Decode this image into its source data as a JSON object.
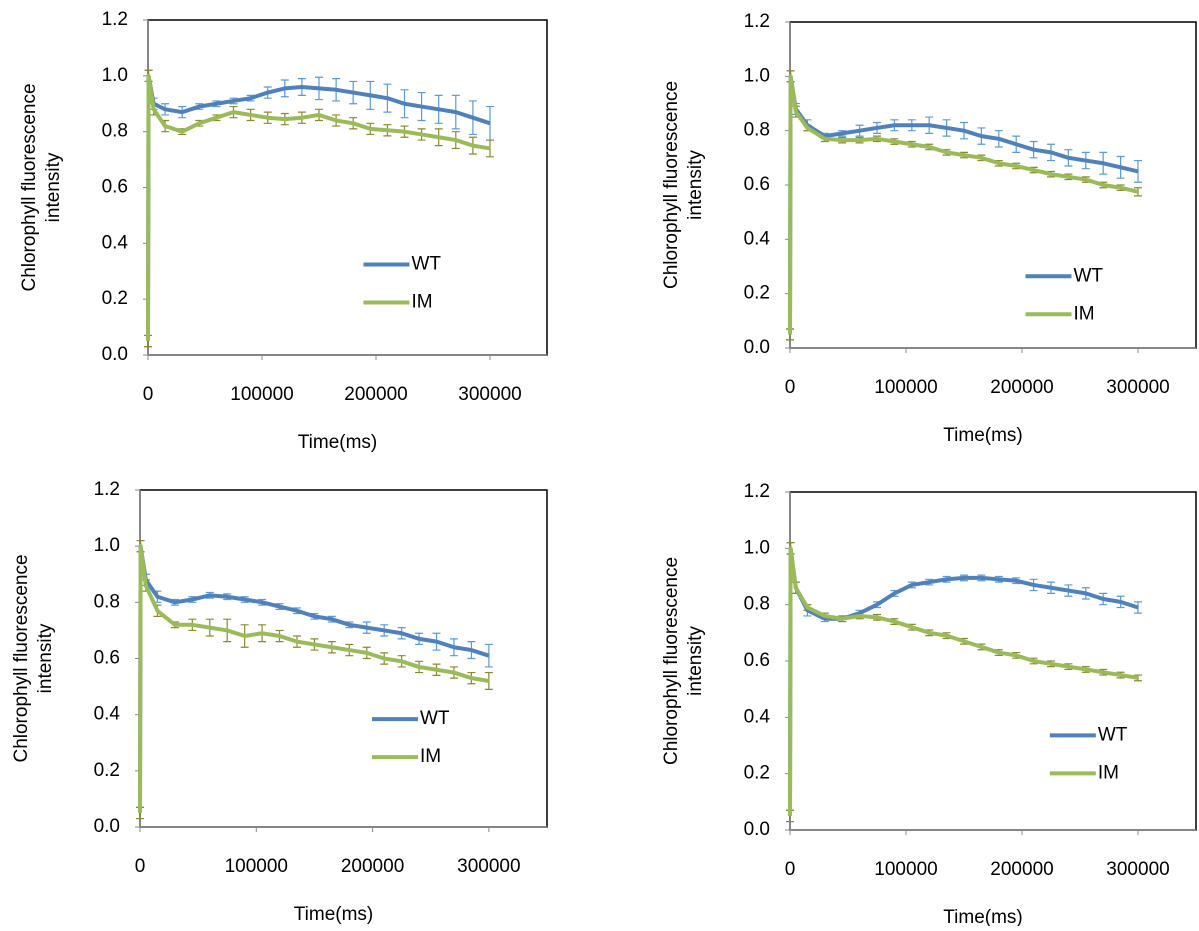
{
  "chart_data": [
    {
      "type": "line",
      "x_label": "Time(ms)",
      "y_label": [
        "Chlorophyll fluorescence",
        "intensity"
      ],
      "x": [
        0,
        500,
        5000,
        15000,
        30000,
        45000,
        60000,
        75000,
        90000,
        105000,
        120000,
        135000,
        150000,
        165000,
        180000,
        195000,
        210000,
        225000,
        240000,
        255000,
        270000,
        285000,
        300000
      ],
      "xlim": [
        0,
        350000
      ],
      "xticks": [
        0,
        100000,
        200000,
        300000
      ],
      "ylim": [
        0,
        1.2
      ],
      "yticks": [
        {
          "value": 0,
          "label": "0.0"
        },
        0.2,
        0.4,
        0.6,
        0.8,
        {
          "value": 1,
          "label": "1.0"
        },
        1.2
      ],
      "series": [
        {
          "name": "WT",
          "color": "#4f81bd",
          "error_color": "#5b9bd5",
          "values": [
            0.05,
            1.0,
            0.9,
            0.88,
            0.87,
            0.89,
            0.9,
            0.91,
            0.92,
            0.94,
            0.955,
            0.96,
            0.955,
            0.95,
            0.94,
            0.93,
            0.92,
            0.9,
            0.89,
            0.88,
            0.87,
            0.85,
            0.83
          ],
          "error": [
            0.02,
            0.02,
            0.02,
            0.02,
            0.02,
            0.01,
            0.01,
            0.01,
            0.01,
            0.02,
            0.03,
            0.03,
            0.04,
            0.04,
            0.04,
            0.05,
            0.05,
            0.05,
            0.05,
            0.05,
            0.06,
            0.06,
            0.06
          ]
        },
        {
          "name": "IM",
          "color": "#9bbb59",
          "error_color": "#8c8a2e",
          "values": [
            0.05,
            1.0,
            0.88,
            0.82,
            0.8,
            0.83,
            0.85,
            0.87,
            0.86,
            0.85,
            0.845,
            0.85,
            0.86,
            0.84,
            0.83,
            0.81,
            0.805,
            0.8,
            0.79,
            0.78,
            0.77,
            0.75,
            0.74
          ],
          "error": [
            0.02,
            0.02,
            0.02,
            0.02,
            0.01,
            0.01,
            0.01,
            0.02,
            0.02,
            0.02,
            0.02,
            0.02,
            0.02,
            0.02,
            0.02,
            0.02,
            0.02,
            0.02,
            0.02,
            0.03,
            0.03,
            0.03,
            0.03
          ]
        }
      ]
    },
    {
      "type": "line",
      "x_label": "Time(ms)",
      "y_label": [
        "Chlorophyll fluorescence",
        "intensity"
      ],
      "x": [
        0,
        500,
        5000,
        15000,
        30000,
        45000,
        60000,
        75000,
        90000,
        105000,
        120000,
        135000,
        150000,
        165000,
        180000,
        195000,
        210000,
        225000,
        240000,
        255000,
        270000,
        285000,
        300000
      ],
      "xlim": [
        0,
        350000
      ],
      "xticks": [
        0,
        100000,
        200000,
        300000
      ],
      "ylim": [
        0,
        1.2
      ],
      "yticks": [
        {
          "value": 0,
          "label": "0.0"
        },
        0.2,
        0.4,
        0.6,
        0.8,
        {
          "value": 1,
          "label": "1.0"
        },
        1.2
      ],
      "series": [
        {
          "name": "WT",
          "color": "#4f81bd",
          "error_color": "#5b9bd5",
          "values": [
            0.05,
            1.0,
            0.88,
            0.82,
            0.78,
            0.79,
            0.8,
            0.81,
            0.82,
            0.82,
            0.82,
            0.81,
            0.8,
            0.78,
            0.77,
            0.75,
            0.73,
            0.72,
            0.7,
            0.69,
            0.68,
            0.665,
            0.65
          ],
          "error": [
            0.02,
            0.02,
            0.02,
            0.02,
            0.01,
            0.01,
            0.02,
            0.02,
            0.02,
            0.02,
            0.03,
            0.03,
            0.03,
            0.03,
            0.03,
            0.03,
            0.03,
            0.03,
            0.03,
            0.03,
            0.04,
            0.04,
            0.04
          ]
        },
        {
          "name": "IM",
          "color": "#9bbb59",
          "error_color": "#8c8a2e",
          "values": [
            0.05,
            1.0,
            0.87,
            0.81,
            0.77,
            0.765,
            0.765,
            0.77,
            0.76,
            0.75,
            0.74,
            0.72,
            0.71,
            0.7,
            0.68,
            0.67,
            0.655,
            0.64,
            0.63,
            0.62,
            0.6,
            0.59,
            0.575
          ],
          "error": [
            0.02,
            0.02,
            0.02,
            0.01,
            0.01,
            0.01,
            0.01,
            0.01,
            0.01,
            0.01,
            0.01,
            0.01,
            0.01,
            0.01,
            0.01,
            0.01,
            0.01,
            0.01,
            0.01,
            0.01,
            0.01,
            0.01,
            0.015
          ]
        }
      ]
    },
    {
      "type": "line",
      "x_label": "Time(ms)",
      "y_label": [
        "Chlorophyll fluorescence",
        "intensity"
      ],
      "x": [
        0,
        500,
        5000,
        15000,
        30000,
        45000,
        60000,
        75000,
        90000,
        105000,
        120000,
        135000,
        150000,
        165000,
        180000,
        195000,
        210000,
        225000,
        240000,
        255000,
        270000,
        285000,
        300000
      ],
      "xlim": [
        0,
        350000
      ],
      "xticks": [
        0,
        100000,
        200000,
        300000
      ],
      "ylim": [
        0,
        1.2
      ],
      "yticks": [
        {
          "value": 0,
          "label": "0.0"
        },
        0.2,
        0.4,
        0.6,
        0.8,
        {
          "value": 1,
          "label": "1.0"
        },
        1.2
      ],
      "series": [
        {
          "name": "WT",
          "color": "#4f81bd",
          "error_color": "#5b9bd5",
          "values": [
            0.05,
            1.0,
            0.88,
            0.82,
            0.8,
            0.81,
            0.825,
            0.82,
            0.81,
            0.8,
            0.785,
            0.77,
            0.75,
            0.74,
            0.72,
            0.71,
            0.7,
            0.69,
            0.67,
            0.66,
            0.64,
            0.63,
            0.61
          ],
          "error": [
            0.02,
            0.02,
            0.02,
            0.02,
            0.01,
            0.01,
            0.01,
            0.01,
            0.01,
            0.01,
            0.01,
            0.01,
            0.01,
            0.01,
            0.01,
            0.02,
            0.02,
            0.02,
            0.02,
            0.03,
            0.03,
            0.03,
            0.04
          ]
        },
        {
          "name": "IM",
          "color": "#9bbb59",
          "error_color": "#8c8a2e",
          "values": [
            0.05,
            1.0,
            0.86,
            0.77,
            0.72,
            0.72,
            0.71,
            0.7,
            0.68,
            0.69,
            0.68,
            0.66,
            0.65,
            0.64,
            0.63,
            0.62,
            0.6,
            0.59,
            0.57,
            0.56,
            0.55,
            0.53,
            0.52
          ],
          "error": [
            0.02,
            0.02,
            0.02,
            0.02,
            0.01,
            0.02,
            0.03,
            0.04,
            0.04,
            0.03,
            0.02,
            0.02,
            0.02,
            0.02,
            0.02,
            0.02,
            0.02,
            0.02,
            0.02,
            0.02,
            0.02,
            0.02,
            0.03
          ]
        }
      ]
    },
    {
      "type": "line",
      "x_label": "Time(ms)",
      "y_label": [
        "Chlorophyll fluorescence",
        "intensity"
      ],
      "x": [
        0,
        500,
        5000,
        15000,
        30000,
        45000,
        60000,
        75000,
        90000,
        105000,
        120000,
        135000,
        150000,
        165000,
        180000,
        195000,
        210000,
        225000,
        240000,
        255000,
        270000,
        285000,
        300000
      ],
      "xlim": [
        0,
        350000
      ],
      "xticks": [
        0,
        100000,
        200000,
        300000
      ],
      "ylim": [
        0,
        1.2
      ],
      "yticks": [
        {
          "value": 0,
          "label": "0.0"
        },
        0.2,
        0.4,
        0.6,
        0.8,
        {
          "value": 1,
          "label": "1.0"
        },
        1.2
      ],
      "series": [
        {
          "name": "WT",
          "color": "#4f81bd",
          "error_color": "#5b9bd5",
          "values": [
            0.05,
            1.0,
            0.86,
            0.78,
            0.75,
            0.75,
            0.77,
            0.8,
            0.84,
            0.87,
            0.88,
            0.89,
            0.895,
            0.895,
            0.89,
            0.885,
            0.87,
            0.86,
            0.85,
            0.84,
            0.82,
            0.81,
            0.79
          ],
          "error": [
            0.02,
            0.02,
            0.02,
            0.02,
            0.01,
            0.01,
            0.01,
            0.01,
            0.01,
            0.01,
            0.01,
            0.01,
            0.01,
            0.01,
            0.01,
            0.01,
            0.02,
            0.02,
            0.02,
            0.02,
            0.02,
            0.02,
            0.02
          ]
        },
        {
          "name": "IM",
          "color": "#9bbb59",
          "error_color": "#8c8a2e",
          "values": [
            0.05,
            1.0,
            0.86,
            0.79,
            0.76,
            0.75,
            0.76,
            0.755,
            0.74,
            0.72,
            0.7,
            0.69,
            0.67,
            0.65,
            0.63,
            0.62,
            0.6,
            0.59,
            0.58,
            0.57,
            0.56,
            0.55,
            0.54
          ],
          "error": [
            0.02,
            0.02,
            0.02,
            0.01,
            0.01,
            0.01,
            0.01,
            0.01,
            0.01,
            0.01,
            0.01,
            0.01,
            0.01,
            0.01,
            0.01,
            0.01,
            0.01,
            0.01,
            0.01,
            0.01,
            0.01,
            0.01,
            0.01
          ]
        }
      ]
    }
  ]
}
